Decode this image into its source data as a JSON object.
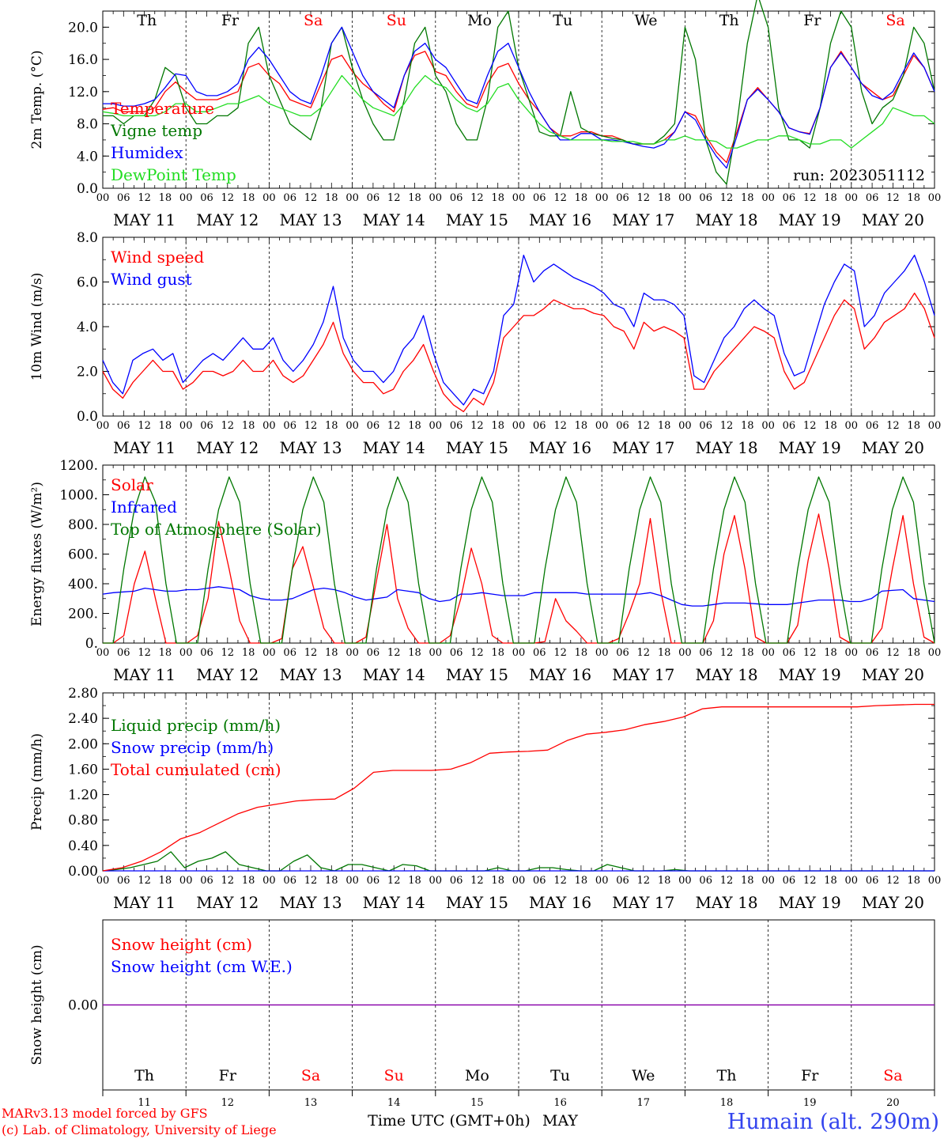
{
  "days": [
    "MAY 11",
    "MAY 12",
    "MAY 13",
    "MAY 14",
    "MAY 15",
    "MAY 16",
    "MAY 17",
    "MAY 18",
    "MAY 19",
    "MAY 20"
  ],
  "weekdays": [
    "Th",
    "Fr",
    "Sa",
    "Su",
    "Mo",
    "Tu",
    "We",
    "Th",
    "Fr",
    "Sa"
  ],
  "weekend_flags": [
    false,
    false,
    true,
    true,
    false,
    false,
    false,
    false,
    false,
    true
  ],
  "day_numbers": [
    "11",
    "12",
    "13",
    "14",
    "15",
    "16",
    "17",
    "18",
    "19",
    "20"
  ],
  "hour_labels": [
    "00",
    "06",
    "12",
    "18"
  ],
  "hour_end_label": "00",
  "colors": {
    "red": "#ff0000",
    "blue": "#0000ff",
    "green": "#007700",
    "lightgreen": "#22dd22",
    "purple": "#8800aa",
    "black": "#000000"
  },
  "footer": {
    "model": "MARv3.13 model forced by GFS",
    "lab": "(c) Lab. of Climatology, University of Liege",
    "axis_title": "Time UTC (GMT+0h)",
    "month": "MAY",
    "station": "Humain (alt. 290m)"
  },
  "chart_data": [
    {
      "id": "temp",
      "type": "line",
      "ylabel": "2m Temp. (°C)",
      "ylim": [
        0,
        22
      ],
      "yticks": [
        "0.0",
        "4.0",
        "8.0",
        "12.0",
        "16.0",
        "20.0"
      ],
      "ytick_values": [
        0,
        4,
        8,
        12,
        16,
        20
      ],
      "run_label": "run: 2023051112",
      "show_weekdays": true,
      "series": [
        {
          "name": "Temperature",
          "color": "red",
          "values": [
            9.8,
            10,
            9.5,
            9.5,
            9.5,
            10,
            12,
            13.2,
            12,
            11,
            11,
            11,
            11.5,
            12,
            15,
            15.5,
            14,
            13,
            11,
            10.5,
            10,
            13,
            16,
            16.5,
            14.5,
            13,
            12,
            10.5,
            9.5,
            14,
            16.5,
            17,
            14.5,
            14,
            12,
            10.5,
            10,
            13,
            15,
            15.5,
            13,
            11,
            9.5,
            7.5,
            6.5,
            6.5,
            7,
            7,
            6.5,
            6.5,
            6,
            5.5,
            5.5,
            5.5,
            6,
            7,
            9.5,
            9,
            6.5,
            4.5,
            3.2,
            7,
            11,
            12.5,
            11,
            9.5,
            7.5,
            7,
            6.8,
            10,
            15,
            17,
            15,
            13,
            12,
            11,
            11.5,
            14,
            16.5,
            15,
            12
          ]
        },
        {
          "name": "Vigne temp",
          "color": "green",
          "values": [
            9,
            9,
            8,
            9,
            9,
            11,
            15,
            14,
            10,
            8,
            8,
            9,
            9,
            10,
            18,
            20,
            14,
            11,
            8,
            7,
            6,
            10,
            18,
            20,
            15,
            11,
            8,
            6,
            6,
            11,
            18,
            20,
            14,
            12,
            8,
            6,
            6,
            11,
            20,
            22,
            15,
            11,
            7,
            6.5,
            6.5,
            12,
            7.5,
            6.8,
            6.5,
            6.2,
            6,
            5.5,
            5.5,
            5.5,
            6.5,
            8,
            20,
            16,
            6,
            2,
            0.5,
            8,
            18,
            24,
            20,
            10,
            6,
            6,
            5,
            10,
            18,
            22,
            20,
            12,
            8,
            10,
            11,
            14,
            20,
            18,
            12
          ]
        },
        {
          "name": "Humidex",
          "color": "blue",
          "values": [
            10.5,
            10.5,
            10.2,
            10.2,
            10.5,
            11,
            12.5,
            14.2,
            14,
            12,
            11.5,
            11.5,
            12,
            13,
            16,
            17.5,
            16,
            14,
            12,
            11,
            10.5,
            14,
            18,
            20,
            17,
            14,
            12,
            11,
            10,
            14,
            17,
            18,
            16,
            15,
            13,
            11,
            10.5,
            14,
            17,
            18,
            15,
            12,
            9.5,
            7.5,
            6,
            6,
            6.8,
            6.8,
            6,
            6,
            5.8,
            5.5,
            5.2,
            5,
            5.5,
            7,
            9.5,
            8.5,
            6,
            4,
            2.5,
            6.5,
            11,
            12.3,
            11,
            9.5,
            7.5,
            7,
            6.7,
            10,
            15,
            16.8,
            15,
            13,
            11.5,
            11,
            12,
            14.5,
            16.8,
            15,
            12
          ]
        },
        {
          "name": "DewPoint Temp",
          "color": "lightgreen",
          "values": [
            9.5,
            9.3,
            9,
            9,
            9,
            9,
            9.5,
            10.5,
            10.5,
            9.5,
            9.5,
            10,
            10.5,
            10.5,
            11,
            11.5,
            10.5,
            10,
            9.5,
            9,
            9,
            10,
            12,
            14,
            12.5,
            11,
            10,
            9.5,
            9,
            10.5,
            12.5,
            14,
            13,
            12.5,
            11,
            10,
            9.5,
            10.5,
            12.5,
            13,
            11,
            9.5,
            8,
            7,
            6.5,
            6,
            6,
            6,
            6,
            5.8,
            5.8,
            5.8,
            5.5,
            5.5,
            6,
            6,
            6.5,
            6,
            6,
            5.8,
            5,
            5,
            5.5,
            6,
            6,
            6.5,
            6.5,
            6,
            5.5,
            5.5,
            6,
            6,
            5,
            6,
            7,
            8,
            10,
            9.5,
            9,
            9,
            8
          ]
        }
      ]
    },
    {
      "id": "wind",
      "type": "line",
      "ylabel": "10m Wind (m/s)",
      "ylim": [
        0,
        8
      ],
      "yticks": [
        "0.0",
        "2.0",
        "4.0",
        "6.0",
        "8.0"
      ],
      "ytick_values": [
        0,
        2,
        4,
        6,
        8
      ],
      "ref_line": 5,
      "series": [
        {
          "name": "Wind speed",
          "color": "red",
          "values": [
            2,
            1.2,
            0.8,
            1.5,
            2,
            2.5,
            2,
            2,
            1.2,
            1.5,
            2,
            2,
            1.8,
            2,
            2.5,
            2,
            2,
            2.5,
            1.8,
            1.5,
            1.8,
            2.5,
            3.2,
            4.2,
            2.8,
            2,
            1.5,
            1.5,
            1,
            1.2,
            2,
            2.5,
            3.2,
            2,
            1,
            0.5,
            0.2,
            0.8,
            0.5,
            1.5,
            3.5,
            4,
            4.5,
            4.5,
            4.8,
            5.2,
            5,
            4.8,
            4.8,
            4.6,
            4.5,
            4,
            3.8,
            3,
            4.2,
            3.8,
            4,
            3.8,
            3.5,
            1.2,
            1.2,
            2,
            2.5,
            3,
            3.5,
            4,
            3.8,
            3.5,
            2,
            1.2,
            1.5,
            2.5,
            3.5,
            4.5,
            5.2,
            4.8,
            3,
            3.5,
            4.2,
            4.5,
            4.8,
            5.5,
            4.8,
            3.5
          ]
        },
        {
          "name": "Wind gust",
          "color": "blue",
          "values": [
            2.5,
            1.5,
            1,
            2.5,
            2.8,
            3,
            2.5,
            2.8,
            1.5,
            2,
            2.5,
            2.8,
            2.5,
            3,
            3.5,
            3,
            3,
            3.5,
            2.5,
            2,
            2.5,
            3.2,
            4.2,
            5.8,
            3.5,
            2.5,
            2,
            2,
            1.5,
            2,
            3,
            3.5,
            4.5,
            2.8,
            1.5,
            1,
            0.5,
            1.2,
            1,
            2,
            4.5,
            5,
            7.2,
            6,
            6.5,
            6.8,
            6.5,
            6.2,
            6,
            5.8,
            5.5,
            5,
            4.8,
            4,
            5.5,
            5.2,
            5.2,
            5,
            4.5,
            1.8,
            1.5,
            2.5,
            3.5,
            4,
            4.8,
            5.2,
            4.8,
            4.5,
            2.8,
            1.8,
            2,
            3.5,
            5,
            6,
            6.8,
            6.5,
            4,
            4.5,
            5.5,
            6,
            6.5,
            7.2,
            6,
            4.5
          ]
        }
      ]
    },
    {
      "id": "energy",
      "type": "line",
      "ylabel": "Energy fluxes (W/m²)",
      "ylim": [
        0,
        1200
      ],
      "yticks": [
        "0.",
        "200.",
        "400.",
        "600.",
        "800.",
        "1000.",
        "1200."
      ],
      "ytick_values": [
        0,
        200,
        400,
        600,
        800,
        1000,
        1200
      ],
      "series": [
        {
          "name": "Solar",
          "color": "red",
          "values": [
            0,
            0,
            50,
            400,
            620,
            300,
            0,
            0,
            0,
            50,
            300,
            820,
            500,
            150,
            0,
            0,
            0,
            30,
            500,
            650,
            380,
            100,
            0,
            0,
            0,
            40,
            420,
            800,
            300,
            100,
            0,
            0,
            0,
            50,
            300,
            640,
            400,
            50,
            0,
            0,
            0,
            0,
            10,
            300,
            150,
            80,
            0,
            0,
            0,
            30,
            200,
            400,
            840,
            350,
            0,
            0,
            0,
            0,
            150,
            600,
            860,
            500,
            40,
            0,
            0,
            0,
            120,
            560,
            870,
            500,
            40,
            0,
            0,
            0,
            100,
            500,
            860,
            400,
            40,
            0
          ]
        },
        {
          "name": "Infrared",
          "color": "blue",
          "values": [
            330,
            340,
            345,
            350,
            370,
            360,
            350,
            350,
            360,
            360,
            370,
            380,
            370,
            360,
            320,
            300,
            290,
            290,
            300,
            330,
            360,
            370,
            360,
            340,
            310,
            290,
            300,
            310,
            360,
            350,
            340,
            300,
            280,
            290,
            330,
            330,
            340,
            330,
            320,
            320,
            320,
            340,
            340,
            340,
            340,
            340,
            330,
            330,
            330,
            330,
            330,
            330,
            340,
            320,
            290,
            260,
            250,
            250,
            260,
            270,
            270,
            270,
            265,
            260,
            260,
            260,
            270,
            280,
            290,
            290,
            290,
            280,
            280,
            300,
            350,
            355,
            360,
            300,
            290,
            280
          ]
        },
        {
          "name": "Top of Atmosphere (Solar)",
          "color": "green",
          "values": [
            0,
            0,
            500,
            900,
            1120,
            950,
            400,
            0,
            0,
            0,
            500,
            900,
            1120,
            950,
            400,
            0,
            0,
            0,
            500,
            900,
            1120,
            950,
            400,
            0,
            0,
            0,
            500,
            900,
            1120,
            950,
            400,
            0,
            0,
            0,
            500,
            900,
            1120,
            950,
            400,
            0,
            0,
            0,
            500,
            900,
            1120,
            950,
            400,
            0,
            0,
            0,
            500,
            900,
            1120,
            950,
            400,
            0,
            0,
            0,
            500,
            900,
            1120,
            950,
            400,
            0,
            0,
            0,
            500,
            900,
            1120,
            950,
            400,
            0,
            0,
            0,
            500,
            900,
            1120,
            950,
            400,
            0
          ]
        }
      ]
    },
    {
      "id": "precip",
      "type": "line",
      "ylabel": "Precip (mm/h)",
      "ylim": [
        0,
        2.8
      ],
      "yticks": [
        "0.00",
        "0.40",
        "0.80",
        "1.20",
        "1.60",
        "2.00",
        "2.40",
        "2.80"
      ],
      "ytick_values": [
        0,
        0.4,
        0.8,
        1.2,
        1.6,
        2.0,
        2.4,
        2.8
      ],
      "series": [
        {
          "name": "Liquid precip (mm/h)",
          "color": "green",
          "values": [
            0,
            0.02,
            0.05,
            0.1,
            0.15,
            0.3,
            0.05,
            0.15,
            0.2,
            0.3,
            0.1,
            0.05,
            0,
            0,
            0.15,
            0.25,
            0.05,
            0,
            0.1,
            0.1,
            0.05,
            0,
            0.1,
            0.08,
            0,
            0,
            0,
            0,
            0,
            0.05,
            0,
            0,
            0.05,
            0.05,
            0.02,
            0,
            0,
            0.1,
            0.05,
            0,
            0,
            0,
            0.02,
            0,
            0,
            0,
            0,
            0,
            0,
            0,
            0,
            0,
            0,
            0,
            0,
            0,
            0,
            0,
            0,
            0,
            0,
            0
          ]
        },
        {
          "name": "Snow precip (mm/h)",
          "color": "blue",
          "values": [
            0,
            0,
            0,
            0,
            0,
            0,
            0,
            0,
            0,
            0,
            0,
            0,
            0,
            0,
            0,
            0,
            0,
            0,
            0,
            0,
            0,
            0,
            0,
            0,
            0,
            0,
            0,
            0,
            0,
            0,
            0,
            0,
            0,
            0,
            0,
            0,
            0,
            0,
            0,
            0,
            0,
            0,
            0,
            0,
            0,
            0,
            0,
            0,
            0,
            0,
            0,
            0,
            0,
            0,
            0,
            0,
            0,
            0,
            0,
            0,
            0,
            0
          ]
        },
        {
          "name": "Total cumulated (cm)",
          "color": "red",
          "values": [
            0,
            0.05,
            0.15,
            0.3,
            0.5,
            0.6,
            0.75,
            0.9,
            1.0,
            1.05,
            1.1,
            1.12,
            1.13,
            1.3,
            1.55,
            1.58,
            1.58,
            1.58,
            1.6,
            1.7,
            1.85,
            1.87,
            1.88,
            1.9,
            2.05,
            2.15,
            2.18,
            2.22,
            2.3,
            2.35,
            2.42,
            2.55,
            2.58,
            2.58,
            2.58,
            2.58,
            2.58,
            2.58,
            2.58,
            2.58,
            2.6,
            2.61,
            2.62,
            2.62
          ]
        }
      ]
    },
    {
      "id": "snow",
      "type": "line",
      "ylabel": "Snow height (cm)",
      "ylim": [
        -1,
        1
      ],
      "yticks": [
        "0.00"
      ],
      "ytick_values": [
        0
      ],
      "series": [
        {
          "name": "Snow height (cm)",
          "color": "red",
          "values": [
            0,
            0
          ]
        },
        {
          "name": "Snow height (cm W.E.)",
          "color": "blue",
          "values": [
            0,
            0
          ]
        }
      ]
    }
  ]
}
